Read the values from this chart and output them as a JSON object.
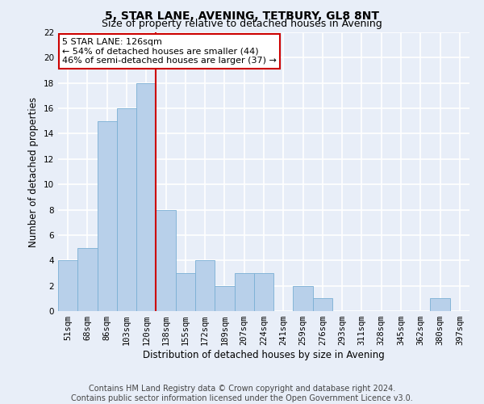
{
  "title": "5, STAR LANE, AVENING, TETBURY, GL8 8NT",
  "subtitle": "Size of property relative to detached houses in Avening",
  "xlabel": "Distribution of detached houses by size in Avening",
  "ylabel": "Number of detached properties",
  "categories": [
    "51sqm",
    "68sqm",
    "86sqm",
    "103sqm",
    "120sqm",
    "138sqm",
    "155sqm",
    "172sqm",
    "189sqm",
    "207sqm",
    "224sqm",
    "241sqm",
    "259sqm",
    "276sqm",
    "293sqm",
    "311sqm",
    "328sqm",
    "345sqm",
    "362sqm",
    "380sqm",
    "397sqm"
  ],
  "values": [
    4,
    5,
    15,
    16,
    18,
    8,
    3,
    4,
    2,
    3,
    3,
    0,
    2,
    1,
    0,
    0,
    0,
    0,
    0,
    1,
    0
  ],
  "bar_color": "#b8d0ea",
  "bar_edgecolor": "#7aafd4",
  "property_line_x": 4.5,
  "annotation_text": "5 STAR LANE: 126sqm\n← 54% of detached houses are smaller (44)\n46% of semi-detached houses are larger (37) →",
  "annotation_box_color": "#ffffff",
  "annotation_box_edgecolor": "#cc0000",
  "vline_color": "#cc0000",
  "ylim": [
    0,
    22
  ],
  "yticks": [
    0,
    2,
    4,
    6,
    8,
    10,
    12,
    14,
    16,
    18,
    20,
    22
  ],
  "footer": "Contains HM Land Registry data © Crown copyright and database right 2024.\nContains public sector information licensed under the Open Government Licence v3.0.",
  "background_color": "#e8eef8",
  "plot_background_color": "#e8eef8",
  "grid_color": "#ffffff",
  "title_fontsize": 10,
  "subtitle_fontsize": 9,
  "label_fontsize": 8.5,
  "tick_fontsize": 7.5,
  "footer_fontsize": 7
}
